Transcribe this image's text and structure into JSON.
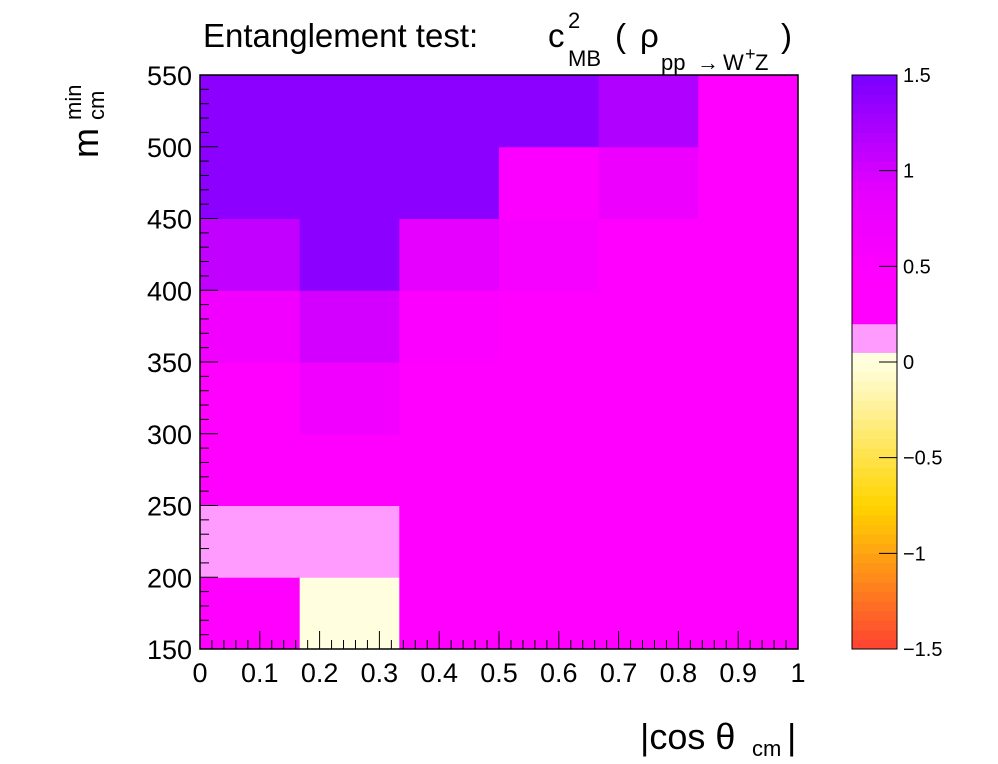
{
  "chart_data": {
    "type": "heatmap",
    "title": {
      "main": "Entanglement test:",
      "symbol_base": "c",
      "symbol_sup": "2",
      "symbol_sub": "MB",
      "paren_open": "(",
      "rho": "ρ",
      "rho_sub_prefix": "pp",
      "arrow": "→",
      "rho_sub_w": "W",
      "rho_sub_plus": "+",
      "rho_sub_z": "Z",
      "paren_close": ")"
    },
    "xlabel": {
      "left": "|cos θ",
      "sub": "cm",
      "right": "|"
    },
    "ylabel": {
      "base": "m",
      "sup": "min",
      "sub": "cm"
    },
    "x_edges": [
      0,
      0.1667,
      0.3333,
      0.5,
      0.6667,
      0.8333,
      1.0
    ],
    "y_edges": [
      150,
      200,
      250,
      300,
      350,
      400,
      450,
      500,
      550
    ],
    "xlim": [
      0,
      1
    ],
    "ylim": [
      150,
      550
    ],
    "x_ticks": [
      {
        "value": 0,
        "label": "0"
      },
      {
        "value": 0.1,
        "label": "0.1"
      },
      {
        "value": 0.2,
        "label": "0.2"
      },
      {
        "value": 0.3,
        "label": "0.3"
      },
      {
        "value": 0.4,
        "label": "0.4"
      },
      {
        "value": 0.5,
        "label": "0.5"
      },
      {
        "value": 0.6,
        "label": "0.6"
      },
      {
        "value": 0.7,
        "label": "0.7"
      },
      {
        "value": 0.8,
        "label": "0.8"
      },
      {
        "value": 0.9,
        "label": "0.9"
      },
      {
        "value": 1,
        "label": "1"
      }
    ],
    "y_ticks": [
      {
        "value": 150,
        "label": "150"
      },
      {
        "value": 200,
        "label": "200"
      },
      {
        "value": 250,
        "label": "250"
      },
      {
        "value": 300,
        "label": "300"
      },
      {
        "value": 350,
        "label": "350"
      },
      {
        "value": 400,
        "label": "400"
      },
      {
        "value": 450,
        "label": "450"
      },
      {
        "value": 500,
        "label": "500"
      },
      {
        "value": 550,
        "label": "550"
      }
    ],
    "values": [
      [
        0.35,
        0.02,
        0.35,
        0.3,
        0.3,
        0.3
      ],
      [
        0.12,
        0.12,
        0.35,
        0.3,
        0.3,
        0.3
      ],
      [
        0.4,
        0.4,
        0.4,
        0.3,
        0.3,
        0.3
      ],
      [
        0.4,
        0.7,
        0.45,
        0.4,
        0.35,
        0.3
      ],
      [
        0.7,
        1.0,
        0.5,
        0.45,
        0.35,
        0.3
      ],
      [
        1.1,
        1.4,
        0.9,
        0.6,
        0.45,
        0.3
      ],
      [
        1.4,
        1.4,
        1.4,
        0.5,
        0.75,
        0.3
      ],
      [
        1.4,
        1.4,
        1.4,
        1.4,
        1.2,
        0.3
      ]
    ],
    "zlim": [
      -1.5,
      1.5
    ],
    "colorbar_ticks": [
      {
        "value": 1.5,
        "label": "1.5"
      },
      {
        "value": 1,
        "label": "1"
      },
      {
        "value": 0.5,
        "label": "0.5"
      },
      {
        "value": 0,
        "label": "0"
      },
      {
        "value": -0.5,
        "label": "−0.5"
      },
      {
        "value": -1,
        "label": "−1"
      },
      {
        "value": -1.5,
        "label": "−1.5"
      }
    ],
    "colormap": {
      "neg_bottom": "#ff4133",
      "neg_mid": "#ffd400",
      "neg_top": "#ffffe0",
      "pos_low": "#ff00ff",
      "pos_mid": "#e500ff",
      "pos_high": "#7a00ff",
      "special_light_pink": "#ff9aff"
    },
    "grid": false,
    "legend": "colorbar-right"
  }
}
